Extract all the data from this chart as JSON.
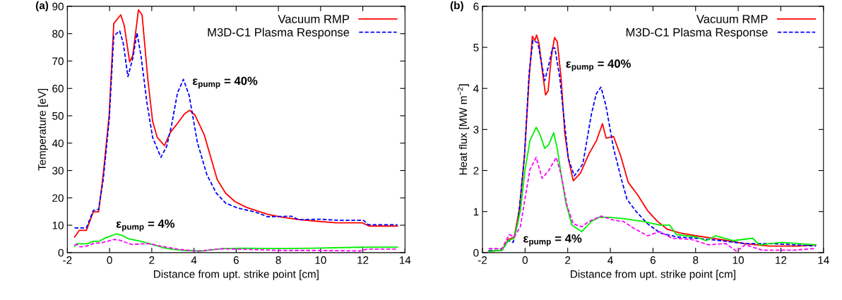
{
  "chart_data": [
    {
      "type": "line",
      "xlabel": "Distance from upt. strike point [cm]",
      "ylabel": "Temperature [eV]",
      "xlim": [
        -2,
        14
      ],
      "xticks": [
        -2,
        0,
        2,
        4,
        6,
        8,
        10,
        12,
        14
      ],
      "ylim": [
        0,
        90
      ],
      "yticks": [
        0,
        10,
        20,
        30,
        40,
        50,
        60,
        70,
        80,
        90
      ],
      "grid": false,
      "legend": "top right",
      "annotations": [
        "(a)",
        "ε$_{pump}$ = 40%",
        "ε$_{pump}$ = 4%"
      ],
      "series": [
        {
          "name": "Vacuum RMP",
          "color": "#ff0000",
          "line_style": "solid",
          "x": [
            -1.66,
            -1.55,
            -1.44,
            -1.1,
            -0.77,
            -0.52,
            -0.3,
            -0.02,
            0.2,
            0.53,
            0.7,
            0.95,
            1.1,
            1.37,
            1.54,
            1.82,
            2.04,
            2.26,
            2.6,
            2.88,
            3.16,
            3.55,
            3.8,
            4.05,
            4.49,
            4.83,
            5.1,
            5.5,
            5.95,
            6.5,
            7.06,
            7.5,
            8.06,
            8.85,
            9.74,
            10.74,
            11.97,
            12.3,
            13.64
          ],
          "values": [
            5.7,
            6.8,
            8.1,
            8.1,
            14.9,
            14.9,
            28.5,
            50.2,
            83.7,
            86.9,
            82.8,
            69.7,
            72,
            88.7,
            86.9,
            62.9,
            48,
            42.1,
            39.1,
            43.9,
            46.6,
            50.7,
            52,
            50.2,
            43,
            33.9,
            26.7,
            21.7,
            18.6,
            16.5,
            15.1,
            14,
            13.1,
            12.2,
            11.5,
            10.9,
            10.9,
            9.7,
            9.7
          ]
        },
        {
          "name": "M3D-C1 Plasma Response",
          "color": "#0000ff",
          "line_style": "dashed",
          "x": [
            -1.66,
            -1.1,
            -0.77,
            -0.52,
            -0.3,
            -0.02,
            0.2,
            0.48,
            0.65,
            0.87,
            1.1,
            1.3,
            1.49,
            1.77,
            2.04,
            2.43,
            2.71,
            2.94,
            3.22,
            3.5,
            3.77,
            4.16,
            4.61,
            5.06,
            5.5,
            6.06,
            6.88,
            7.5,
            8.62,
            8.96,
            9.98,
            10.86,
            12.03,
            12.26,
            13.64
          ],
          "values": [
            9.0,
            9.0,
            15.4,
            15.8,
            26.7,
            48.4,
            79.2,
            81,
            76.5,
            64.3,
            71,
            80.3,
            71.9,
            54.8,
            42.1,
            34.8,
            38.9,
            46.6,
            58.4,
            63.3,
            57.5,
            40.3,
            28.5,
            21.7,
            18.1,
            16.3,
            14.9,
            13.1,
            13.3,
            12.0,
            12.2,
            11.8,
            11.8,
            10.2,
            10.2
          ]
        },
        {
          "color": "#00ee00",
          "line_style": "solid",
          "x": [
            -1.66,
            -1.55,
            -1.05,
            -0.77,
            -0.5,
            -0.19,
            0.31,
            0.59,
            0.92,
            1.49,
            2.15,
            2.71,
            3.5,
            4.38,
            5.28,
            6.28,
            7.96,
            9.63,
            12.08,
            13.64
          ],
          "values": [
            2.3,
            3.2,
            3.2,
            4.1,
            4.1,
            5.4,
            6.8,
            6.3,
            5.0,
            4.1,
            2.7,
            1.5,
            0.8,
            0.6,
            1.4,
            1.6,
            1.5,
            1.6,
            2.0,
            2.0
          ]
        },
        {
          "color": "#ff00ff",
          "line_style": "dashed",
          "x": [
            -1.66,
            -1.55,
            -1.39,
            -1.1,
            -0.77,
            -0.38,
            0.23,
            0.48,
            1.04,
            1.88,
            2.38,
            3.27,
            4.16,
            5.28,
            6.39,
            7.96,
            9.63,
            11.86,
            12.2,
            13.64
          ],
          "values": [
            2.7,
            3.0,
            2.1,
            2.3,
            3.3,
            3.6,
            4.8,
            4.5,
            3.0,
            3.3,
            2.4,
            1.2,
            0.5,
            1.4,
            1.2,
            0.8,
            0.8,
            0.6,
            1.3,
            1.3
          ]
        }
      ]
    },
    {
      "type": "line",
      "xlabel": "Distance from upt. strike point [cm]",
      "ylabel": "Heat flux [MW m$^{−2}$]",
      "xlim": [
        -2,
        14
      ],
      "xticks": [
        -2,
        0,
        2,
        4,
        6,
        8,
        10,
        12,
        14
      ],
      "ylim": [
        0,
        6
      ],
      "yticks": [
        0,
        1,
        2,
        3,
        4,
        5,
        6
      ],
      "grid": false,
      "legend": "top right",
      "annotations": [
        "(b)",
        "ε$_{pump}$ = 40%",
        "ε$_{pump}$ = 4%"
      ],
      "series": [
        {
          "name": "Vacuum RMP",
          "color": "#ff0000",
          "line_style": "solid",
          "x": [
            -1.71,
            -1.08,
            -0.79,
            -0.51,
            -0.26,
            -0.03,
            0.19,
            0.34,
            0.46,
            0.54,
            0.65,
            0.82,
            0.96,
            1.08,
            1.23,
            1.38,
            1.51,
            1.69,
            1.86,
            2.03,
            2.26,
            2.6,
            3.0,
            3.35,
            3.63,
            3.8,
            4.15,
            4.49,
            4.84,
            5.29,
            5.75,
            6.21,
            6.67,
            7.24,
            8.02,
            9.17,
            10.3,
            11.46,
            12.83,
            13.64
          ],
          "values": [
            0.03,
            0.06,
            0.32,
            0.38,
            1.08,
            2.35,
            4.25,
            5.27,
            5.17,
            5.3,
            5.11,
            4.38,
            3.84,
            3.94,
            4.76,
            5.24,
            5.14,
            4.25,
            2.92,
            2.29,
            1.75,
            1.94,
            2.41,
            2.73,
            3.14,
            2.79,
            2.83,
            2.35,
            1.71,
            1.4,
            1.02,
            0.76,
            0.57,
            0.48,
            0.41,
            0.32,
            0.22,
            0.16,
            0.16,
            0.19
          ]
        },
        {
          "name": "M3D-C1 Plasma Response",
          "color": "#0000ff",
          "line_style": "dashed",
          "x": [
            -1.71,
            -1.08,
            -0.79,
            -0.56,
            -0.33,
            -0.03,
            0.19,
            0.37,
            0.6,
            0.92,
            1.11,
            1.28,
            1.4,
            1.63,
            1.86,
            2.03,
            2.31,
            2.71,
            3.11,
            3.34,
            3.56,
            3.79,
            4.15,
            4.49,
            4.78,
            5.18,
            5.75,
            6.33,
            7.13,
            8.04,
            9.19,
            10.33,
            11.48,
            12.62,
            13.64
          ],
          "values": [
            0.05,
            0.06,
            0.29,
            0.25,
            0.76,
            2.35,
            4.38,
            5.17,
            5.11,
            4.19,
            4.57,
            4.98,
            4.98,
            4.25,
            3.11,
            2.29,
            1.87,
            2.16,
            3.37,
            3.87,
            4.03,
            3.59,
            2.54,
            1.84,
            1.3,
            1.02,
            0.7,
            0.48,
            0.38,
            0.35,
            0.29,
            0.22,
            0.22,
            0.19,
            0.16
          ]
        },
        {
          "color": "#00ee00",
          "line_style": "solid",
          "x": [
            -1.71,
            -1.08,
            -0.79,
            -0.51,
            -0.22,
            0.0,
            0.23,
            0.52,
            0.69,
            0.92,
            1.11,
            1.34,
            1.51,
            1.69,
            1.91,
            2.2,
            2.66,
            3.11,
            3.46,
            3.92,
            4.61,
            5.52,
            6.33,
            6.78,
            7.1,
            8.04,
            8.49,
            8.95,
            9.75,
            10.67,
            11.0,
            12.03,
            13.64
          ],
          "values": [
            0.03,
            0.06,
            0.29,
            0.35,
            1.02,
            2.03,
            2.73,
            3.05,
            2.89,
            2.54,
            2.63,
            2.92,
            2.54,
            1.9,
            1.21,
            0.67,
            0.51,
            0.76,
            0.86,
            0.86,
            0.83,
            0.76,
            0.67,
            0.67,
            0.44,
            0.38,
            0.29,
            0.41,
            0.29,
            0.35,
            0.19,
            0.25,
            0.19
          ]
        },
        {
          "color": "#ff00ff",
          "line_style": "dashed",
          "x": [
            -1.71,
            -1.08,
            -0.74,
            -0.51,
            -0.22,
            0.0,
            0.23,
            0.52,
            0.8,
            1.11,
            1.46,
            1.69,
            1.97,
            2.26,
            2.66,
            3.0,
            3.58,
            4.15,
            4.61,
            5.07,
            5.75,
            6.33,
            6.9,
            7.81,
            8.61,
            9.41,
            9.93,
            10.33,
            11.13,
            12.62,
            13.64
          ],
          "values": [
            0.1,
            0.1,
            0.44,
            0.38,
            0.63,
            1.33,
            2.03,
            2.32,
            1.81,
            2.0,
            2.32,
            1.9,
            1.14,
            0.7,
            0.63,
            0.76,
            0.89,
            0.79,
            0.76,
            0.6,
            0.41,
            0.51,
            0.35,
            0.32,
            0.19,
            0.22,
            0.03,
            0.19,
            0.06,
            0.06,
            0.1
          ]
        }
      ]
    }
  ]
}
